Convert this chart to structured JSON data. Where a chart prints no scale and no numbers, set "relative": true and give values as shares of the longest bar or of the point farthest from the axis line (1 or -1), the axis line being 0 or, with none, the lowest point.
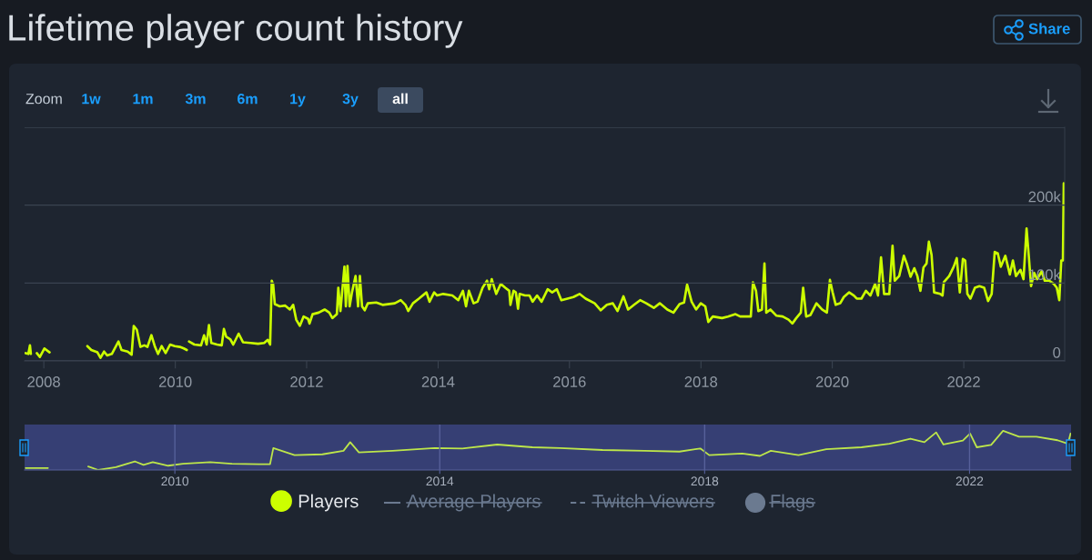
{
  "chart_data": [
    {
      "type": "line",
      "title": "Lifetime player count history",
      "x": [
        "2007-09-22",
        "2007-10-07",
        "2007-10-16",
        "2007-10-21",
        "2007-11-05",
        "2007-11-23",
        "2007-12-10",
        "2008-01-04",
        "2008-02-02",
        "2008-05-15",
        "2008-08-30",
        "2008-09-21",
        "2008-10-25",
        "2008-11-11",
        "2008-12-01",
        "2008-12-18",
        "2009-01-13",
        "2009-02-19",
        "2009-03-08",
        "2009-04-11",
        "2009-05-03",
        "2009-05-15",
        "2009-06-01",
        "2009-06-21",
        "2009-07-13",
        "2009-07-30",
        "2009-08-21",
        "2009-09-10",
        "2009-09-27",
        "2009-10-17",
        "2009-11-08",
        "2009-12-03",
        "2009-12-29",
        "2010-01-26",
        "2010-02-17",
        "2010-03-06",
        "2010-03-12",
        "2010-03-18",
        "2010-04-17",
        "2010-05-24",
        "2010-06-10",
        "2010-06-24",
        "2010-07-07",
        "2010-07-20",
        "2010-08-21",
        "2010-09-16",
        "2010-09-28",
        "2010-10-11",
        "2010-11-02",
        "2010-11-19",
        "2010-12-19",
        "2011-01-12",
        "2011-02-23",
        "2011-04-06",
        "2011-05-10",
        "2011-05-30",
        "2011-06-12",
        "2011-06-21",
        "2011-06-29",
        "2011-07-08",
        "2011-08-05",
        "2011-09-04",
        "2011-09-30",
        "2011-10-18",
        "2011-11-04",
        "2011-11-24",
        "2011-12-15",
        "2012-01-09",
        "2012-01-17",
        "2012-02-03",
        "2012-03-08",
        "2012-04-10",
        "2012-05-06",
        "2012-05-23",
        "2012-06-17",
        "2012-06-25",
        "2012-07-07",
        "2012-07-29",
        "2012-08-06",
        "2012-08-15",
        "2012-08-27",
        "2012-09-09",
        "2012-09-29",
        "2012-10-13",
        "2012-10-23",
        "2012-11-04",
        "2012-11-19",
        "2012-12-06",
        "2013-01-22",
        "2013-02-26",
        "2013-05-05",
        "2013-06-07",
        "2013-07-03",
        "2013-07-19",
        "2013-08-14",
        "2013-09-16",
        "2013-10-28",
        "2013-11-14",
        "2013-12-10",
        "2013-12-26",
        "2014-01-29",
        "2014-03-21",
        "2014-04-23",
        "2014-05-19",
        "2014-06-05",
        "2014-06-21",
        "2014-07-17",
        "2014-08-08",
        "2014-09-05",
        "2014-09-30",
        "2014-10-12",
        "2014-10-26",
        "2014-11-20",
        "2014-12-15",
        "2015-01-09",
        "2015-01-31",
        "2015-02-07",
        "2015-02-24",
        "2015-03-09",
        "2015-03-21",
        "2015-03-30",
        "2015-04-29",
        "2015-05-24",
        "2015-06-10",
        "2015-07-05",
        "2015-07-30",
        "2015-09-02",
        "2015-09-27",
        "2015-10-23",
        "2015-11-17",
        "2015-12-21",
        "2016-01-23",
        "2016-02-26",
        "2016-03-31",
        "2016-05-20",
        "2016-06-23",
        "2016-07-27",
        "2016-08-29",
        "2016-09-24",
        "2016-10-27",
        "2016-11-22",
        "2016-12-25",
        "2017-01-28",
        "2017-03-03",
        "2017-04-14",
        "2017-05-17",
        "2017-06-28",
        "2017-08-01",
        "2017-09-04",
        "2017-09-29",
        "2017-10-16",
        "2017-11-10",
        "2017-12-05",
        "2017-12-31",
        "2018-01-25",
        "2018-02-11",
        "2018-03-08",
        "2018-04-28",
        "2018-05-31",
        "2018-07-12",
        "2018-08-07",
        "2018-09-10",
        "2018-10-05",
        "2018-10-17",
        "2018-11-03",
        "2018-11-16",
        "2018-12-06",
        "2018-12-20",
        "2018-12-30",
        "2019-01-22",
        "2019-02-25",
        "2019-03-31",
        "2019-05-03",
        "2019-05-24",
        "2019-06-15",
        "2019-07-10",
        "2019-07-23",
        "2019-08-09",
        "2019-09-02",
        "2019-10-05",
        "2019-11-05",
        "2019-12-02",
        "2019-12-19",
        "2020-01-03",
        "2020-01-20",
        "2020-02-14",
        "2020-03-05",
        "2020-04-04",
        "2020-04-30",
        "2020-05-16",
        "2020-06-11",
        "2020-07-06",
        "2020-07-31",
        "2020-08-26",
        "2020-09-11",
        "2020-09-28",
        "2020-10-15",
        "2020-11-13",
        "2020-12-01",
        "2020-12-13",
        "2021-01-07",
        "2021-02-02",
        "2021-02-18",
        "2021-03-11",
        "2021-04-01",
        "2021-04-18",
        "2021-05-05",
        "2021-05-22",
        "2021-06-08",
        "2021-06-21",
        "2021-07-06",
        "2021-07-20",
        "2021-08-23",
        "2021-09-05",
        "2021-09-12",
        "2021-10-12",
        "2021-11-06",
        "2021-11-23",
        "2021-12-10",
        "2021-12-27",
        "2022-01-09",
        "2022-01-21",
        "2022-02-07",
        "2022-03-04",
        "2022-03-29",
        "2022-04-24",
        "2022-05-16",
        "2022-06-05",
        "2022-06-22",
        "2022-07-09",
        "2022-07-26",
        "2022-08-20",
        "2022-09-14",
        "2022-10-01",
        "2022-10-18",
        "2022-11-12",
        "2022-11-29",
        "2022-12-16",
        "2022-12-29",
        "2023-01-10",
        "2023-01-27",
        "2023-02-13",
        "2023-03-10",
        "2023-03-27",
        "2023-04-21",
        "2023-05-16",
        "2023-06-02",
        "2023-06-16",
        "2023-06-27",
        "2023-07-06",
        "2023-07-11"
      ],
      "series": [
        {
          "name": "Players",
          "color": "#ccff00",
          "values": [
            10000,
            9000,
            20000,
            9000,
            null,
            10000,
            5000,
            16000,
            11000,
            null,
            19000,
            14000,
            11000,
            4000,
            12000,
            7000,
            9000,
            25000,
            14000,
            12000,
            8000,
            45000,
            40000,
            18000,
            20000,
            18000,
            33000,
            18000,
            9000,
            19000,
            10000,
            21000,
            19000,
            18000,
            16000,
            14000,
            null,
            25000,
            21000,
            20000,
            33000,
            21000,
            46000,
            23000,
            21000,
            20000,
            41000,
            31000,
            28000,
            21000,
            35000,
            24000,
            23000,
            22000,
            23000,
            27000,
            21000,
            103000,
            98000,
            73000,
            70000,
            71000,
            66000,
            72000,
            53000,
            45000,
            57000,
            54000,
            48000,
            60000,
            62000,
            66000,
            62000,
            55000,
            60000,
            94000,
            64000,
            121000,
            70000,
            122000,
            70000,
            88000,
            109000,
            70000,
            109000,
            70000,
            65000,
            74000,
            75000,
            72000,
            74000,
            78000,
            72000,
            64000,
            74000,
            80000,
            88000,
            76000,
            88000,
            84000,
            86000,
            84000,
            78000,
            90000,
            70000,
            90000,
            74000,
            76000,
            94000,
            103000,
            92000,
            105000,
            86000,
            99000,
            94000,
            90000,
            72000,
            90000,
            88000,
            67000,
            86000,
            84000,
            84000,
            76000,
            84000,
            76000,
            92000,
            88000,
            92000,
            78000,
            80000,
            82000,
            86000,
            80000,
            74000,
            65000,
            72000,
            74000,
            64000,
            83000,
            66000,
            72000,
            78000,
            74000,
            68000,
            74000,
            66000,
            62000,
            73000,
            75000,
            98000,
            76000,
            66000,
            74000,
            70000,
            50000,
            57000,
            55000,
            57000,
            60000,
            57000,
            57000,
            57000,
            101000,
            90000,
            64000,
            66000,
            125000,
            62000,
            66000,
            58000,
            57000,
            53000,
            48000,
            55000,
            62000,
            94000,
            57000,
            59000,
            74000,
            66000,
            62000,
            104000,
            88000,
            72000,
            74000,
            82000,
            88000,
            84000,
            80000,
            80000,
            90000,
            84000,
            99000,
            84000,
            133000,
            86000,
            86000,
            148000,
            103000,
            109000,
            135000,
            125000,
            108000,
            119000,
            109000,
            90000,
            120000,
            125000,
            153000,
            136000,
            88000,
            86000,
            84000,
            101000,
            109000,
            121000,
            132000,
            88000,
            131000,
            129000,
            86000,
            80000,
            94000,
            96000,
            94000,
            77000,
            86000,
            140000,
            138000,
            121000,
            135000,
            111000,
            129000,
            109000,
            117000,
            105000,
            170000,
            133000,
            96000,
            113000,
            105000,
            115000,
            103000,
            103000,
            99000,
            94000,
            78000,
            129000,
            129000,
            228000
          ]
        }
      ],
      "xlim": [
        "2007-09-16",
        "2023-07-16"
      ],
      "xticks": [
        "2008",
        "2010",
        "2012",
        "2014",
        "2016",
        "2018",
        "2020",
        "2022"
      ],
      "ylim": [
        0,
        300000
      ],
      "yticks": [
        0,
        {
          "value": 100000,
          "label": "100k"
        },
        {
          "value": 200000,
          "label": "200k"
        },
        {
          "value": 300000,
          "label": null
        }
      ],
      "grid": "y",
      "legend": "bottom",
      "line_style": "solid",
      "annotations": [
        "Zoom",
        "1w",
        "1m",
        "3m",
        "6m",
        "1y",
        "3y",
        "all",
        "Share",
        "Average Players",
        "Twitch Viewers",
        "Flags"
      ]
    },
    {
      "type": "line",
      "relative": true,
      "x": [
        "2007-10-01",
        "2008-02-01",
        "2008-05-15",
        "2008-09-10",
        "2008-11-05",
        "2009-02-10",
        "2009-05-25",
        "2009-07-12",
        "2009-09-01",
        "2009-11-25",
        "2010-02-15",
        "2010-07-15",
        "2010-11-10",
        "2011-04-10",
        "2011-06-10",
        "2011-06-28",
        "2011-10-23",
        "2012-03-25",
        "2012-07-19",
        "2012-08-25",
        "2012-10-12",
        "2013-04-16",
        "2013-12-03",
        "2014-05-05",
        "2014-11-14",
        "2015-05-27",
        "2015-10-27",
        "2016-06-17",
        "2017-02-03",
        "2017-08-15",
        "2017-12-08",
        "2018-01-26",
        "2018-07-27",
        "2018-11-02",
        "2019-01-01",
        "2019-06-03",
        "2019-11-03",
        "2020-05-15",
        "2020-10-16",
        "2021-02-09",
        "2021-04-27",
        "2021-07-01",
        "2021-08-10",
        "2021-11-25",
        "2022-01-04",
        "2022-02-10",
        "2022-04-30",
        "2022-07-05",
        "2022-10-01",
        "2023-01-05",
        "2023-05-01",
        "2023-06-28",
        "2023-07-12"
      ],
      "series": [
        {
          "color": "#bde64a",
          "values": [
            0.05,
            0.05,
            null,
            0.09,
            0,
            0.07,
            0.22,
            0.13,
            0.2,
            0.11,
            0.16,
            0.2,
            0.16,
            0.15,
            0.15,
            0.56,
            0.38,
            0.4,
            0.49,
            0.71,
            0.45,
            0.49,
            0.56,
            0.55,
            0.65,
            0.58,
            0.56,
            0.51,
            0.49,
            0.47,
            0.55,
            0.38,
            0.42,
            0.36,
            0.49,
            0.38,
            0.53,
            0.58,
            0.67,
            0.8,
            0.71,
            0.96,
            0.65,
            0.75,
            0.93,
            0.58,
            0.64,
            1,
            0.85,
            0.85,
            0.76,
            0.67,
            0.93
          ]
        }
      ],
      "xlim": [
        "2007-09-25",
        "2023-07-15"
      ],
      "xticks": [
        "2010",
        "2014",
        "2018",
        "2022"
      ],
      "grid": "x",
      "tick_labels": "x"
    }
  ]
}
